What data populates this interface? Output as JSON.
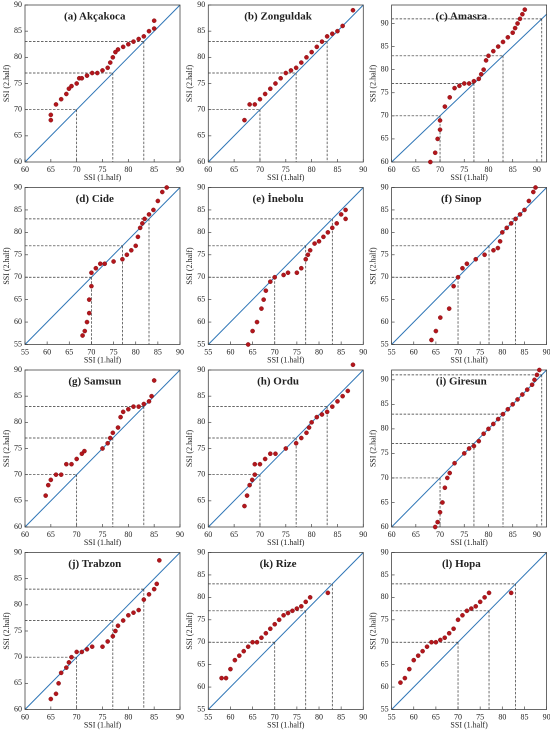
{
  "chart_data": [
    {
      "type": "scatter",
      "title": "(a) Akçakoca",
      "xlabel": "SSI (1.half)",
      "ylabel": "SSI (2.half)",
      "color": "#b3161c",
      "xlim": [
        60,
        90
      ],
      "ylim": [
        60,
        90
      ],
      "xticks": [
        60,
        65,
        70,
        75,
        80,
        85,
        90
      ],
      "yticks": [
        60,
        65,
        70,
        75,
        80,
        85,
        90
      ],
      "reference_lines": [
        70,
        77,
        83
      ],
      "x": [
        65,
        65,
        66,
        67,
        68,
        68.5,
        69,
        70,
        70.5,
        71,
        72,
        73,
        74,
        75,
        76,
        76.5,
        77,
        77.5,
        78,
        79,
        80,
        81,
        82,
        83,
        84,
        85,
        85
      ],
      "values": [
        68,
        69,
        71,
        72,
        73,
        74,
        74.5,
        75,
        76,
        76,
        76.5,
        77,
        77,
        77.5,
        78,
        79,
        80,
        81,
        81.5,
        82,
        82.5,
        83,
        83.5,
        84,
        85,
        85.5,
        87
      ]
    },
    {
      "type": "scatter",
      "title": "(b) Zonguldak",
      "xlabel": "SSI (1.half)",
      "ylabel": "SSI (2.half)",
      "color": "#b3161c",
      "xlim": [
        60,
        90
      ],
      "ylim": [
        60,
        90
      ],
      "xticks": [
        60,
        65,
        70,
        75,
        80,
        85,
        90
      ],
      "yticks": [
        60,
        65,
        70,
        75,
        80,
        85,
        90
      ],
      "reference_lines": [
        70,
        77,
        83
      ],
      "x": [
        67,
        68,
        69,
        70,
        71,
        72,
        73,
        74,
        75,
        76,
        77,
        78,
        79,
        80,
        81,
        82,
        83,
        84,
        85,
        86,
        88
      ],
      "values": [
        68,
        71,
        71,
        72,
        73,
        74,
        75,
        76,
        77,
        77.5,
        78,
        79,
        80,
        81,
        82,
        83,
        84,
        84.5,
        85,
        86,
        89
      ]
    },
    {
      "type": "scatter",
      "title": "(c) Amasra",
      "xlabel": "SSI (1.half)",
      "ylabel": "SSI (2.half)",
      "color": "#b3161c",
      "xlim": [
        60,
        92
      ],
      "ylim": [
        60,
        94
      ],
      "xticks": [
        60,
        65,
        70,
        75,
        80,
        85,
        90
      ],
      "yticks": [
        60,
        65,
        70,
        75,
        80,
        85,
        90
      ],
      "reference_lines": [
        70,
        77,
        83,
        91
      ],
      "x": [
        68,
        69,
        69.5,
        70,
        70,
        71,
        72,
        73,
        74,
        75,
        76,
        77,
        78,
        78.5,
        79,
        79.5,
        80,
        81,
        82,
        83,
        84,
        85,
        85.5,
        86,
        86.5,
        87,
        87.5
      ],
      "values": [
        60,
        62,
        65,
        67,
        69,
        72,
        74,
        76,
        76.5,
        77,
        77,
        77.5,
        78,
        79,
        80,
        82,
        83,
        84,
        85,
        86,
        87,
        88,
        89,
        90,
        91,
        92,
        93
      ]
    },
    {
      "type": "scatter",
      "title": "(d) Cide",
      "xlabel": "SSI (1.half)",
      "ylabel": "SSI (2.half)",
      "color": "#b3161c",
      "xlim": [
        55,
        90
      ],
      "ylim": [
        55,
        90
      ],
      "xticks": [
        55,
        60,
        65,
        70,
        75,
        80,
        85,
        90
      ],
      "yticks": [
        55,
        60,
        65,
        70,
        75,
        80,
        85,
        90
      ],
      "reference_lines": [
        70,
        77,
        83
      ],
      "x": [
        68,
        68.5,
        69,
        69.5,
        69.5,
        70,
        70,
        71,
        72,
        73,
        75,
        77,
        78,
        79,
        80,
        80.5,
        81,
        81.5,
        82,
        83,
        84,
        85,
        86,
        87
      ],
      "values": [
        57,
        58,
        60,
        62,
        65,
        68,
        71,
        72,
        73,
        73,
        73.5,
        74,
        75,
        76,
        77,
        79,
        81,
        82,
        83,
        84,
        85,
        87,
        89,
        90
      ]
    },
    {
      "type": "scatter",
      "title": "(e) İnebolu",
      "xlabel": "SSI (1.half)",
      "ylabel": "SSI (2.half)",
      "color": "#b3161c",
      "xlim": [
        55,
        90
      ],
      "ylim": [
        55,
        90
      ],
      "xticks": [
        55,
        60,
        65,
        70,
        75,
        80,
        85,
        90
      ],
      "yticks": [
        55,
        60,
        65,
        70,
        75,
        80,
        85,
        90
      ],
      "reference_lines": [
        70,
        77,
        83
      ],
      "x": [
        64,
        65,
        66,
        67,
        67.5,
        68,
        69,
        70,
        72,
        73,
        75,
        76,
        77,
        77.5,
        78,
        79,
        80,
        81,
        82,
        83,
        84,
        85,
        86,
        86
      ],
      "values": [
        55,
        58,
        60,
        63,
        65,
        67,
        69,
        70,
        70.5,
        71,
        71,
        72,
        74,
        75,
        76,
        77.5,
        78,
        79,
        80,
        81,
        82,
        84,
        85,
        83
      ]
    },
    {
      "type": "scatter",
      "title": "(f) Sinop",
      "xlabel": "SSI (1.half)",
      "ylabel": "SSI (2.half)",
      "color": "#b3161c",
      "xlim": [
        55,
        90
      ],
      "ylim": [
        55,
        90
      ],
      "xticks": [
        55,
        60,
        65,
        70,
        75,
        80,
        85,
        90
      ],
      "yticks": [
        55,
        60,
        65,
        70,
        75,
        80,
        85,
        90
      ],
      "reference_lines": [
        70,
        77,
        83
      ],
      "x": [
        64,
        65,
        66,
        68,
        69,
        70,
        71,
        72,
        74,
        76,
        78,
        79,
        79.5,
        80,
        81,
        82,
        83,
        84,
        85,
        86,
        87,
        87.5
      ],
      "values": [
        56,
        58,
        61,
        63,
        68,
        70,
        72,
        73,
        74,
        75,
        76,
        76.5,
        78,
        80,
        81,
        82,
        83,
        84,
        85,
        87,
        89,
        90
      ]
    },
    {
      "type": "scatter",
      "title": "(g) Samsun",
      "xlabel": "SSI (1.half)",
      "ylabel": "SSI (2.half)",
      "color": "#b3161c",
      "xlim": [
        60,
        90
      ],
      "ylim": [
        60,
        90
      ],
      "xticks": [
        60,
        65,
        70,
        75,
        80,
        85,
        90
      ],
      "yticks": [
        60,
        65,
        70,
        75,
        80,
        85,
        90
      ],
      "reference_lines": [
        70,
        77,
        83
      ],
      "x": [
        64,
        64.5,
        65,
        66,
        67,
        68,
        69,
        70,
        71,
        71.5,
        75,
        76,
        76.5,
        77,
        78,
        78.5,
        79,
        80,
        81,
        82,
        83,
        84,
        84.5,
        85
      ],
      "values": [
        66,
        68,
        69,
        70,
        70,
        72,
        72,
        73,
        74,
        74.5,
        75,
        76,
        77,
        78,
        79,
        81,
        82,
        82.5,
        83,
        83,
        83.5,
        84,
        85,
        88
      ]
    },
    {
      "type": "scatter",
      "title": "(h) Ordu",
      "xlabel": "SSI (1.half)",
      "ylabel": "SSI (2.half)",
      "color": "#b3161c",
      "xlim": [
        60,
        90
      ],
      "ylim": [
        60,
        90
      ],
      "xticks": [
        60,
        65,
        70,
        75,
        80,
        85,
        90
      ],
      "yticks": [
        60,
        65,
        70,
        75,
        80,
        85,
        90
      ],
      "reference_lines": [
        70,
        77,
        83
      ],
      "x": [
        67,
        67.5,
        68,
        68.5,
        69,
        69,
        70,
        71,
        72,
        73,
        75,
        77,
        78,
        79,
        79.5,
        80,
        81,
        82,
        83,
        84,
        85,
        86,
        87,
        88
      ],
      "values": [
        64,
        66,
        68,
        69,
        70,
        72,
        72,
        73,
        74,
        74,
        75,
        76,
        77,
        78,
        79,
        80,
        81,
        81.5,
        82,
        83,
        84,
        85,
        86,
        91
      ]
    },
    {
      "type": "scatter",
      "title": "(i) Giresun",
      "xlabel": "SSI (1.half)",
      "ylabel": "SSI (2.half)",
      "color": "#b3161c",
      "xlim": [
        60,
        92
      ],
      "ylim": [
        60,
        92
      ],
      "xticks": [
        60,
        65,
        70,
        75,
        80,
        85,
        90
      ],
      "yticks": [
        60,
        65,
        70,
        75,
        80,
        85,
        90
      ],
      "reference_lines": [
        70,
        77,
        83,
        91
      ],
      "x": [
        69,
        69.5,
        70,
        70.5,
        71,
        71.5,
        72,
        73,
        75,
        76,
        77,
        78,
        79,
        80,
        81,
        82,
        83,
        84,
        85,
        86,
        87,
        88,
        89,
        89.5,
        90,
        90.5
      ],
      "values": [
        60,
        61,
        63,
        65,
        68,
        70,
        71,
        73,
        75,
        76,
        76.5,
        77.5,
        79,
        80,
        81,
        82,
        83,
        84,
        85,
        86,
        87,
        88,
        89,
        90,
        91,
        92
      ]
    },
    {
      "type": "scatter",
      "title": "(j) Trabzon",
      "xlabel": "SSI (1.half)",
      "ylabel": "SSI (2.half)",
      "color": "#b3161c",
      "xlim": [
        60,
        90
      ],
      "ylim": [
        60,
        90
      ],
      "xticks": [
        60,
        65,
        70,
        75,
        80,
        85,
        90
      ],
      "yticks": [
        60,
        65,
        70,
        75,
        80,
        85,
        90
      ],
      "reference_lines": [
        70,
        77,
        83
      ],
      "x": [
        65,
        66,
        66.5,
        67,
        68,
        68.5,
        69,
        70,
        71,
        72,
        73,
        75,
        76,
        77,
        77.5,
        78,
        79,
        80,
        81,
        82,
        83,
        84,
        85,
        85.5,
        86
      ],
      "values": [
        62,
        63,
        65,
        67,
        68,
        69,
        70,
        71,
        71,
        71.5,
        72,
        72,
        73,
        74,
        75,
        76,
        77,
        78,
        78.5,
        79,
        81,
        82,
        83,
        84,
        88.5
      ]
    },
    {
      "type": "scatter",
      "title": "(k) Rize",
      "xlabel": "SSI (1.half)",
      "ylabel": "SSI (2.half)",
      "color": "#b3161c",
      "xlim": [
        55,
        90
      ],
      "ylim": [
        55,
        90
      ],
      "xticks": [
        55,
        60,
        65,
        70,
        75,
        80,
        85,
        90
      ],
      "yticks": [
        55,
        60,
        65,
        70,
        75,
        80,
        85,
        90
      ],
      "reference_lines": [
        70,
        77,
        83
      ],
      "x": [
        58,
        59,
        60,
        61,
        62,
        63,
        64,
        65,
        66,
        67,
        68,
        69,
        70,
        71,
        72,
        73,
        74,
        75,
        76,
        77,
        78,
        82
      ],
      "values": [
        62,
        62,
        64,
        66,
        67,
        68,
        69,
        70,
        70,
        71,
        72,
        73,
        74,
        75,
        76,
        76.5,
        77,
        77.5,
        78,
        79,
        80,
        81
      ]
    },
    {
      "type": "scatter",
      "title": "(l) Hopa",
      "xlabel": "SSI (1.half)",
      "ylabel": "SSI (2.half)",
      "color": "#b3161c",
      "xlim": [
        55,
        90
      ],
      "ylim": [
        55,
        90
      ],
      "xticks": [
        55,
        60,
        65,
        70,
        75,
        80,
        85,
        90
      ],
      "yticks": [
        55,
        60,
        65,
        70,
        75,
        80,
        85,
        90
      ],
      "reference_lines": [
        70,
        77,
        83
      ],
      "x": [
        57,
        58,
        59,
        60,
        61,
        62,
        63,
        64,
        65,
        66,
        67,
        68,
        69,
        70,
        71,
        72,
        73,
        74,
        75,
        76,
        77,
        82
      ],
      "values": [
        61,
        62,
        64,
        66,
        67,
        68,
        69,
        70,
        70,
        70.5,
        71,
        72,
        73,
        75,
        76,
        77,
        77.5,
        78,
        79,
        80,
        81,
        81
      ]
    }
  ]
}
